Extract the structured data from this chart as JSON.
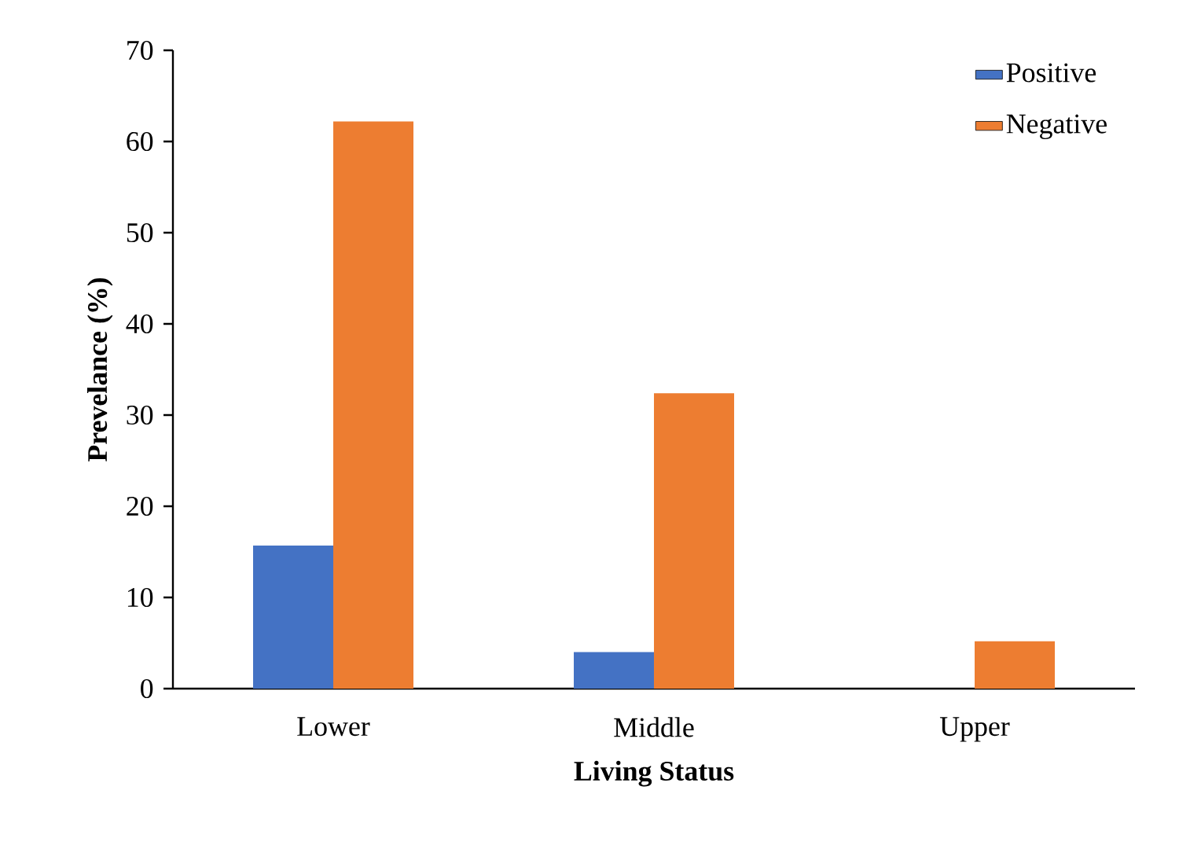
{
  "chart_data": {
    "type": "bar",
    "xlabel": "Living Status",
    "ylabel": "Prevelance (%)",
    "categories": [
      "Lower",
      "Middle",
      "Upper"
    ],
    "series": [
      {
        "name": "Positive",
        "color": "#4472c4",
        "values": [
          15.7,
          4.0,
          0
        ]
      },
      {
        "name": "Negative",
        "color": "#ed7d31",
        "values": [
          62.2,
          32.4,
          5.2
        ]
      }
    ],
    "ylim": [
      0,
      70
    ],
    "yticks": [
      0,
      10,
      20,
      30,
      40,
      50,
      60,
      70
    ],
    "grid": false,
    "legend": "top right"
  }
}
